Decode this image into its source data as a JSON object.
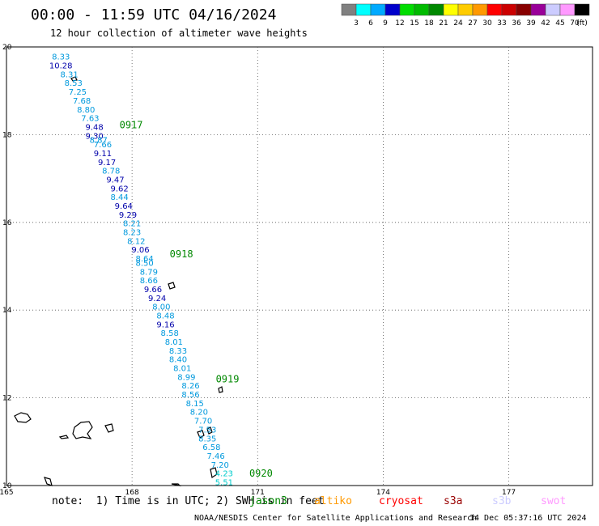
{
  "header": {
    "title": "00:00 - 11:59 UTC 04/16/2024",
    "subtitle": "12 hour collection of altimeter wave heights"
  },
  "colorbar": {
    "unit": "(ft)",
    "labels": [
      "3",
      "6",
      "9",
      "12",
      "15",
      "18",
      "21",
      "24",
      "27",
      "30",
      "33",
      "36",
      "39",
      "42",
      "45",
      "70"
    ],
    "colors": [
      "#808080",
      "#00ffff",
      "#00aaff",
      "#0000cc",
      "#00dd00",
      "#00bb00",
      "#008800",
      "#ffff00",
      "#ffcc00",
      "#ff9900",
      "#ff0000",
      "#cc0000",
      "#880000",
      "#990099",
      "#ccccff",
      "#ff99ff",
      "#000000"
    ]
  },
  "footer": {
    "note": "note:  1) Time is in UTC; 2) SWH is in feet",
    "credit": "NOAA/NESDIS Center for Satellite Applications and Research",
    "timestamp": "14 Dec 05:37:16 UTC 2024"
  },
  "satellites": [
    {
      "name": "jason3",
      "color": "#008800"
    },
    {
      "name": "altiko",
      "color": "#ff9900"
    },
    {
      "name": "cryosat",
      "color": "#ff0000"
    },
    {
      "name": "s3a",
      "color": "#990000"
    },
    {
      "name": "s3b",
      "color": "#ccccff"
    },
    {
      "name": "swot",
      "color": "#ff99ff"
    }
  ],
  "chart_data": {
    "type": "scatter",
    "title": "00:00 - 11:59 UTC 04/16/2024",
    "xlim": [
      165,
      179
    ],
    "ylim": [
      10,
      20
    ],
    "x_ticks": [
      "165",
      "168",
      "171",
      "174",
      "177"
    ],
    "y_ticks": [
      "10",
      "12",
      "14",
      "16",
      "18",
      "20"
    ],
    "grid": true,
    "time_labels": [
      {
        "text": "0917",
        "lon": 167.7,
        "lat": 18.15
      },
      {
        "text": "0918",
        "lon": 168.9,
        "lat": 15.2
      },
      {
        "text": "0919",
        "lon": 170.0,
        "lat": 12.35
      },
      {
        "text": "0920",
        "lon": 170.8,
        "lat": 10.2
      }
    ],
    "series": [
      {
        "name": "jason3",
        "points": [
          {
            "lon": 166.3,
            "lat": 19.71,
            "swh": "8.33"
          },
          {
            "lon": 166.3,
            "lat": 19.51,
            "swh": "10.28"
          },
          {
            "lon": 166.5,
            "lat": 19.31,
            "swh": "8.31"
          },
          {
            "lon": 166.6,
            "lat": 19.11,
            "swh": "8.53"
          },
          {
            "lon": 166.7,
            "lat": 18.91,
            "swh": "7.25"
          },
          {
            "lon": 166.8,
            "lat": 18.71,
            "swh": "7.68"
          },
          {
            "lon": 166.9,
            "lat": 18.51,
            "swh": "8.80"
          },
          {
            "lon": 167.0,
            "lat": 18.31,
            "swh": "7.63"
          },
          {
            "lon": 167.1,
            "lat": 18.11,
            "swh": "9.48"
          },
          {
            "lon": 167.1,
            "lat": 17.91,
            "swh": "9.30"
          },
          {
            "lon": 167.2,
            "lat": 17.81,
            "swh": "8.87"
          },
          {
            "lon": 167.3,
            "lat": 17.71,
            "swh": "7.66"
          },
          {
            "lon": 167.3,
            "lat": 17.51,
            "swh": "9.11"
          },
          {
            "lon": 167.4,
            "lat": 17.31,
            "swh": "9.17"
          },
          {
            "lon": 167.5,
            "lat": 17.11,
            "swh": "8.78"
          },
          {
            "lon": 167.6,
            "lat": 16.91,
            "swh": "9.47"
          },
          {
            "lon": 167.7,
            "lat": 16.71,
            "swh": "9.62"
          },
          {
            "lon": 167.7,
            "lat": 16.51,
            "swh": "8.44"
          },
          {
            "lon": 167.8,
            "lat": 16.31,
            "swh": "9.64"
          },
          {
            "lon": 167.9,
            "lat": 16.11,
            "swh": "9.29"
          },
          {
            "lon": 168.0,
            "lat": 15.91,
            "swh": "8.21"
          },
          {
            "lon": 168.0,
            "lat": 15.71,
            "swh": "8.23"
          },
          {
            "lon": 168.1,
            "lat": 15.51,
            "swh": "8.12"
          },
          {
            "lon": 168.2,
            "lat": 15.31,
            "swh": "9.06"
          },
          {
            "lon": 168.3,
            "lat": 15.11,
            "swh": "8.64"
          },
          {
            "lon": 168.3,
            "lat": 15.01,
            "swh": "8.50"
          },
          {
            "lon": 168.4,
            "lat": 14.81,
            "swh": "8.79"
          },
          {
            "lon": 168.4,
            "lat": 14.61,
            "swh": "8.66"
          },
          {
            "lon": 168.5,
            "lat": 14.41,
            "swh": "9.66"
          },
          {
            "lon": 168.6,
            "lat": 14.21,
            "swh": "9.24"
          },
          {
            "lon": 168.7,
            "lat": 14.01,
            "swh": "8.00"
          },
          {
            "lon": 168.8,
            "lat": 13.81,
            "swh": "8.48"
          },
          {
            "lon": 168.8,
            "lat": 13.61,
            "swh": "9.16"
          },
          {
            "lon": 168.9,
            "lat": 13.41,
            "swh": "8.58"
          },
          {
            "lon": 169.0,
            "lat": 13.21,
            "swh": "8.01"
          },
          {
            "lon": 169.1,
            "lat": 13.01,
            "swh": "8.33"
          },
          {
            "lon": 169.1,
            "lat": 12.81,
            "swh": "8.40"
          },
          {
            "lon": 169.2,
            "lat": 12.61,
            "swh": "8.01"
          },
          {
            "lon": 169.3,
            "lat": 12.41,
            "swh": "8.99"
          },
          {
            "lon": 169.4,
            "lat": 12.21,
            "swh": "8.26"
          },
          {
            "lon": 169.4,
            "lat": 12.01,
            "swh": "8.56"
          },
          {
            "lon": 169.5,
            "lat": 11.81,
            "swh": "8.15"
          },
          {
            "lon": 169.6,
            "lat": 11.61,
            "swh": "8.20"
          },
          {
            "lon": 169.7,
            "lat": 11.41,
            "swh": "7.70"
          },
          {
            "lon": 169.8,
            "lat": 11.21,
            "swh": "7.53"
          },
          {
            "lon": 169.8,
            "lat": 11.01,
            "swh": "8.35"
          },
          {
            "lon": 169.9,
            "lat": 10.81,
            "swh": "6.58"
          },
          {
            "lon": 170.0,
            "lat": 10.61,
            "swh": "7.46"
          },
          {
            "lon": 170.1,
            "lat": 10.41,
            "swh": "7.20"
          },
          {
            "lon": 170.2,
            "lat": 10.21,
            "swh": "4.23"
          },
          {
            "lon": 170.2,
            "lat": 10.01,
            "swh": "5.51"
          }
        ]
      }
    ]
  }
}
